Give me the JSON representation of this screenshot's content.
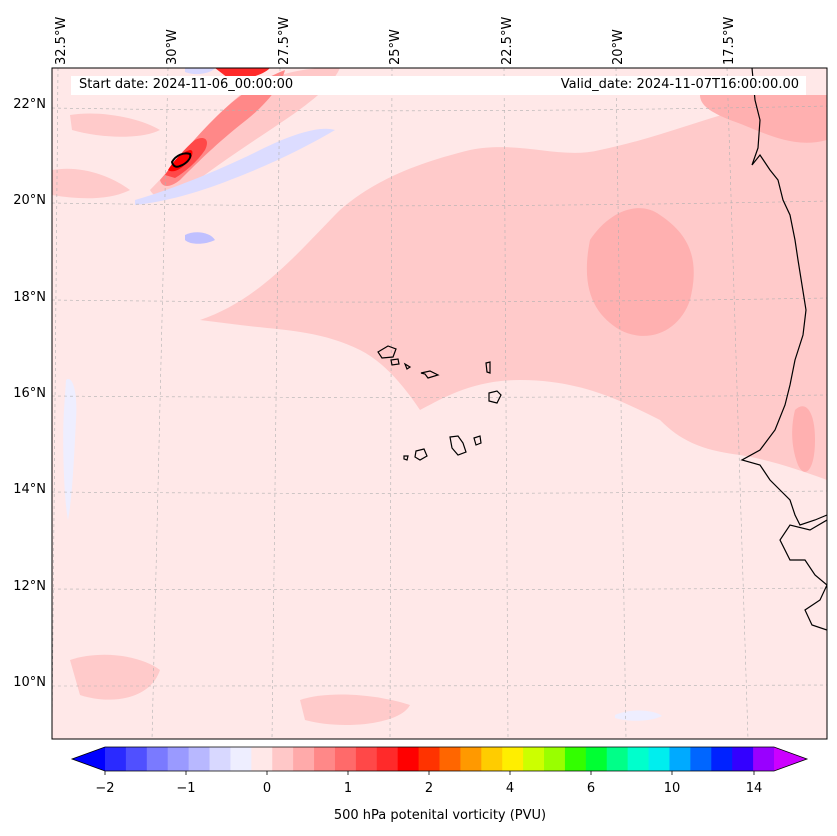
{
  "map": {
    "start_date": "Start date: 2024-11-06_00:00:00",
    "valid_date": "Valid_date: 2024-11-07T16:00:00.00",
    "longitude_labels": [
      "32.5°W",
      "30°W",
      "27.5°W",
      "25°W",
      "22.5°W",
      "20°W",
      "17.5°W"
    ],
    "latitude_labels": [
      "22°N",
      "20°N",
      "18°N",
      "16°N",
      "14°N",
      "12°N",
      "10°N"
    ],
    "colors": {
      "land_outline": "#000000",
      "background_field": "#ffe8e8",
      "gridline": "#b0b0b0"
    }
  },
  "colorbar": {
    "label": "500 hPa potenital vorticity (PVU)",
    "tick_labels": [
      "−2",
      "−1",
      "0",
      "1",
      "2",
      "4",
      "6",
      "10",
      "14"
    ],
    "colors": [
      "#0000ff",
      "#2a2aff",
      "#5050ff",
      "#7a7aff",
      "#9a9aff",
      "#b8b8ff",
      "#d8d8ff",
      "#eeeeff",
      "#ffe8e8",
      "#ffc8c8",
      "#ffaaaa",
      "#ff8888",
      "#ff6a6a",
      "#ff4848",
      "#ff2a2a",
      "#ff0000",
      "#ff3300",
      "#ff6600",
      "#ff9900",
      "#ffcc00",
      "#ffee00",
      "#ccff00",
      "#99ff00",
      "#33ff00",
      "#00ff33",
      "#00ff88",
      "#00ffcc",
      "#00eeee",
      "#00aaff",
      "#0066ff",
      "#0022ff",
      "#3300ff",
      "#9900ff",
      "#cc00ff"
    ]
  }
}
